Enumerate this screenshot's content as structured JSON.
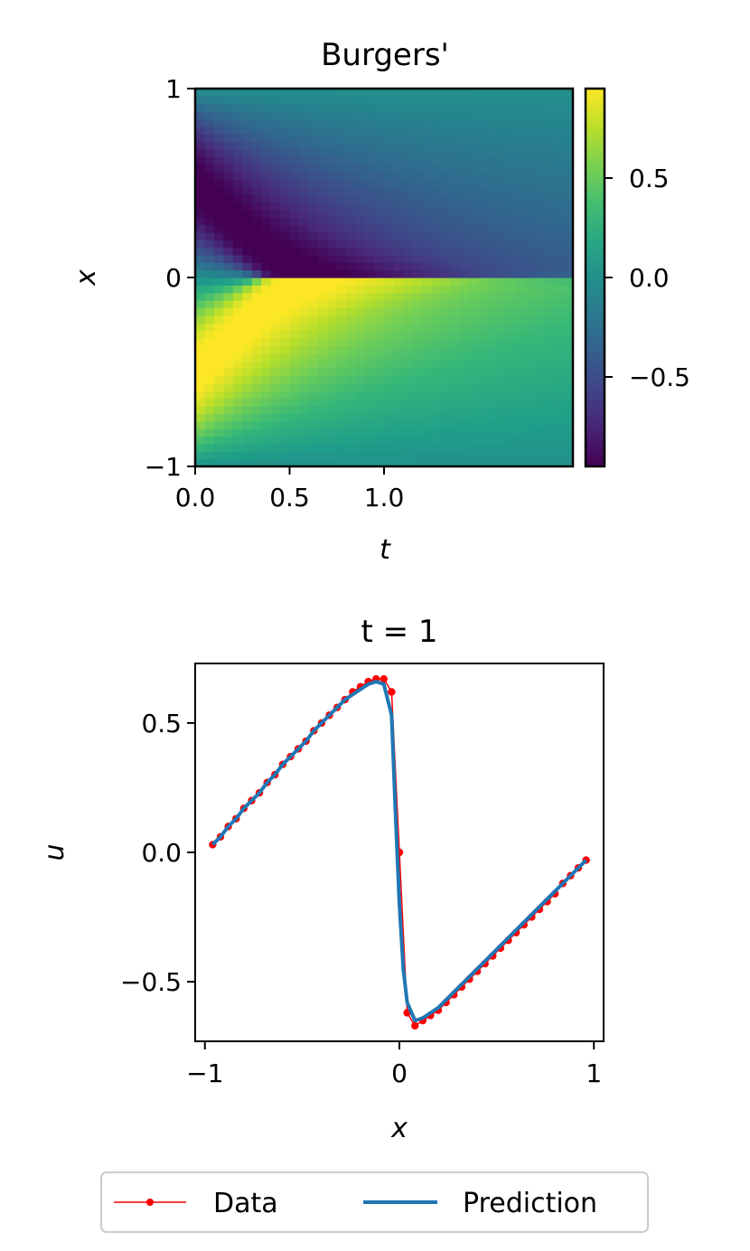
{
  "chart_data": [
    {
      "type": "heatmap",
      "title": "Burgers'",
      "xlabel": "t",
      "ylabel": "x",
      "xlim": [
        0,
        2
      ],
      "ylim": [
        -1,
        1
      ],
      "xticks": [
        0,
        0.5,
        1.0
      ],
      "xtick_labels": [
        "0.0",
        "0.5",
        "1.0"
      ],
      "yticks": [
        1,
        0,
        -1
      ],
      "ytick_labels": [
        "1",
        "0",
        "−1"
      ],
      "colormap": "viridis",
      "grid": {
        "t_steps": 40,
        "x_steps": 50
      },
      "colorbar": {
        "range": [
          -0.95,
          0.95
        ],
        "ticks": [
          0.5,
          0.0,
          -0.5
        ],
        "tick_labels": [
          "0.5",
          "0.0",
          "−0.5"
        ]
      }
    },
    {
      "type": "line",
      "title": "t = 1",
      "xlabel": "x",
      "ylabel": "u",
      "xlim": [
        -1.05,
        1.05
      ],
      "ylim": [
        -0.73,
        0.73
      ],
      "xticks": [
        -1,
        0,
        1
      ],
      "xtick_labels": [
        "−1",
        "0",
        "1"
      ],
      "yticks": [
        0.5,
        0.0,
        -0.5
      ],
      "ytick_labels": [
        "0.5",
        "0.0",
        "−0.5"
      ],
      "grid": false,
      "legend": {
        "placement": "bottom-center",
        "entries": [
          "Data",
          "Prediction"
        ]
      },
      "series": [
        {
          "name": "Data",
          "color": "#ff0000",
          "marker": "dot",
          "x": [
            -0.96,
            -0.92,
            -0.88,
            -0.84,
            -0.8,
            -0.76,
            -0.72,
            -0.68,
            -0.64,
            -0.6,
            -0.56,
            -0.52,
            -0.48,
            -0.44,
            -0.4,
            -0.36,
            -0.32,
            -0.28,
            -0.24,
            -0.2,
            -0.16,
            -0.12,
            -0.08,
            -0.04,
            0.0,
            0.04,
            0.08,
            0.12,
            0.16,
            0.2,
            0.24,
            0.28,
            0.32,
            0.36,
            0.4,
            0.44,
            0.48,
            0.52,
            0.56,
            0.6,
            0.64,
            0.68,
            0.72,
            0.76,
            0.8,
            0.84,
            0.88,
            0.92,
            0.96
          ],
          "y": [
            0.03,
            0.06,
            0.1,
            0.13,
            0.17,
            0.2,
            0.23,
            0.27,
            0.3,
            0.34,
            0.37,
            0.4,
            0.43,
            0.47,
            0.5,
            0.53,
            0.56,
            0.59,
            0.62,
            0.64,
            0.66,
            0.67,
            0.67,
            0.62,
            0.0,
            -0.62,
            -0.67,
            -0.65,
            -0.63,
            -0.61,
            -0.58,
            -0.55,
            -0.52,
            -0.49,
            -0.46,
            -0.43,
            -0.4,
            -0.37,
            -0.34,
            -0.31,
            -0.28,
            -0.25,
            -0.22,
            -0.19,
            -0.16,
            -0.12,
            -0.09,
            -0.06,
            -0.03
          ]
        },
        {
          "name": "Prediction",
          "color": "#1f77b4",
          "x": [
            -0.96,
            -0.92,
            -0.88,
            -0.84,
            -0.8,
            -0.76,
            -0.72,
            -0.68,
            -0.64,
            -0.6,
            -0.56,
            -0.52,
            -0.48,
            -0.44,
            -0.4,
            -0.36,
            -0.32,
            -0.28,
            -0.24,
            -0.2,
            -0.16,
            -0.12,
            -0.08,
            -0.04,
            -0.02,
            0.0,
            0.02,
            0.04,
            0.08,
            0.12,
            0.16,
            0.2,
            0.24,
            0.28,
            0.32,
            0.36,
            0.4,
            0.44,
            0.48,
            0.52,
            0.56,
            0.6,
            0.64,
            0.68,
            0.72,
            0.76,
            0.8,
            0.84,
            0.88,
            0.92,
            0.96
          ],
          "y": [
            0.03,
            0.06,
            0.1,
            0.13,
            0.17,
            0.2,
            0.23,
            0.27,
            0.3,
            0.34,
            0.37,
            0.4,
            0.43,
            0.47,
            0.5,
            0.53,
            0.56,
            0.59,
            0.61,
            0.63,
            0.65,
            0.66,
            0.65,
            0.53,
            0.15,
            -0.2,
            -0.45,
            -0.58,
            -0.65,
            -0.64,
            -0.62,
            -0.6,
            -0.57,
            -0.54,
            -0.51,
            -0.48,
            -0.45,
            -0.42,
            -0.39,
            -0.36,
            -0.33,
            -0.3,
            -0.27,
            -0.24,
            -0.21,
            -0.18,
            -0.15,
            -0.12,
            -0.09,
            -0.06,
            -0.03
          ]
        }
      ]
    }
  ]
}
